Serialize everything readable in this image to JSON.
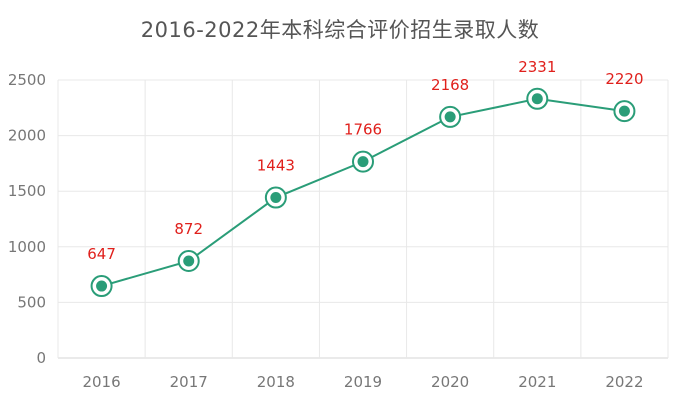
{
  "chart_data": {
    "type": "line",
    "title": "2016-2022年本科综合评价招生录取人数",
    "xlabel": "",
    "ylabel": "",
    "categories": [
      "2016",
      "2017",
      "2018",
      "2019",
      "2020",
      "2021",
      "2022"
    ],
    "series": [
      {
        "values": [
          647,
          872,
          1443,
          1766,
          2168,
          2331,
          2220
        ]
      }
    ],
    "data_labels": [
      "647",
      "872",
      "1443",
      "1766",
      "2168",
      "2331",
      "2220"
    ],
    "ylim": [
      0,
      2500
    ],
    "yticks": [
      0,
      500,
      1000,
      1500,
      2000,
      2500
    ],
    "grid": true,
    "legend": "none",
    "colors": {
      "line": "#2a9d78",
      "marker": "#2a9d78",
      "label": "#e0201c",
      "grid": "#e8e8e8",
      "axis_text": "#777777",
      "title": "#555555"
    }
  }
}
